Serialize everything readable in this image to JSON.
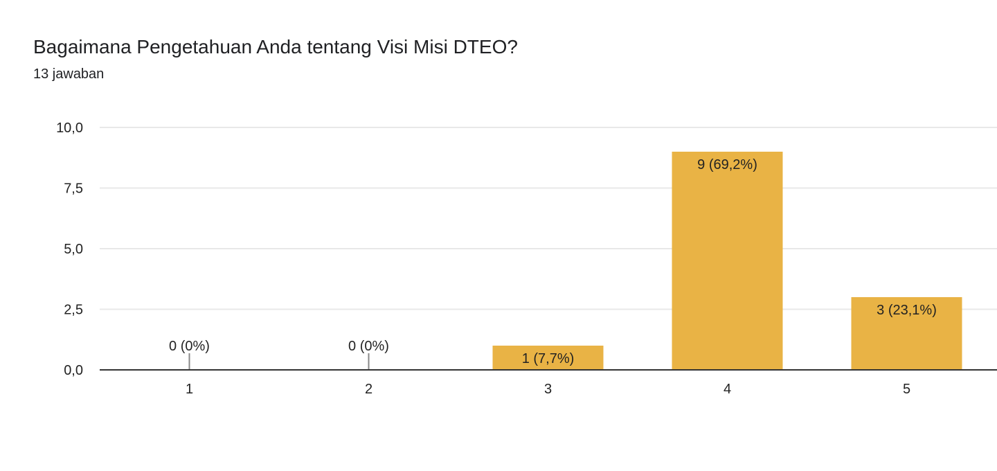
{
  "header": {
    "title": "Bagaimana Pengetahuan Anda tentang Visi Misi DTEO?",
    "response_count": "13 jawaban"
  },
  "colors": {
    "bar": "#e9b345",
    "grid": "#e8e8e8",
    "axis": "#333333",
    "text": "#222222",
    "zero_tick": "#888888"
  },
  "chart_data": {
    "type": "bar",
    "categories": [
      "1",
      "2",
      "3",
      "4",
      "5"
    ],
    "values": [
      0,
      0,
      1,
      9,
      3
    ],
    "data_labels": [
      "0 (0%)",
      "0 (0%)",
      "1 (7,7%)",
      "9 (69,2%)",
      "3 (23,1%)"
    ],
    "ylim": [
      0,
      10
    ],
    "yticks": [
      0,
      2.5,
      5,
      7.5,
      10
    ],
    "ytick_labels": [
      "0,0",
      "2,5",
      "5,0",
      "7,5",
      "10,0"
    ],
    "grid": true,
    "legend": "none"
  }
}
